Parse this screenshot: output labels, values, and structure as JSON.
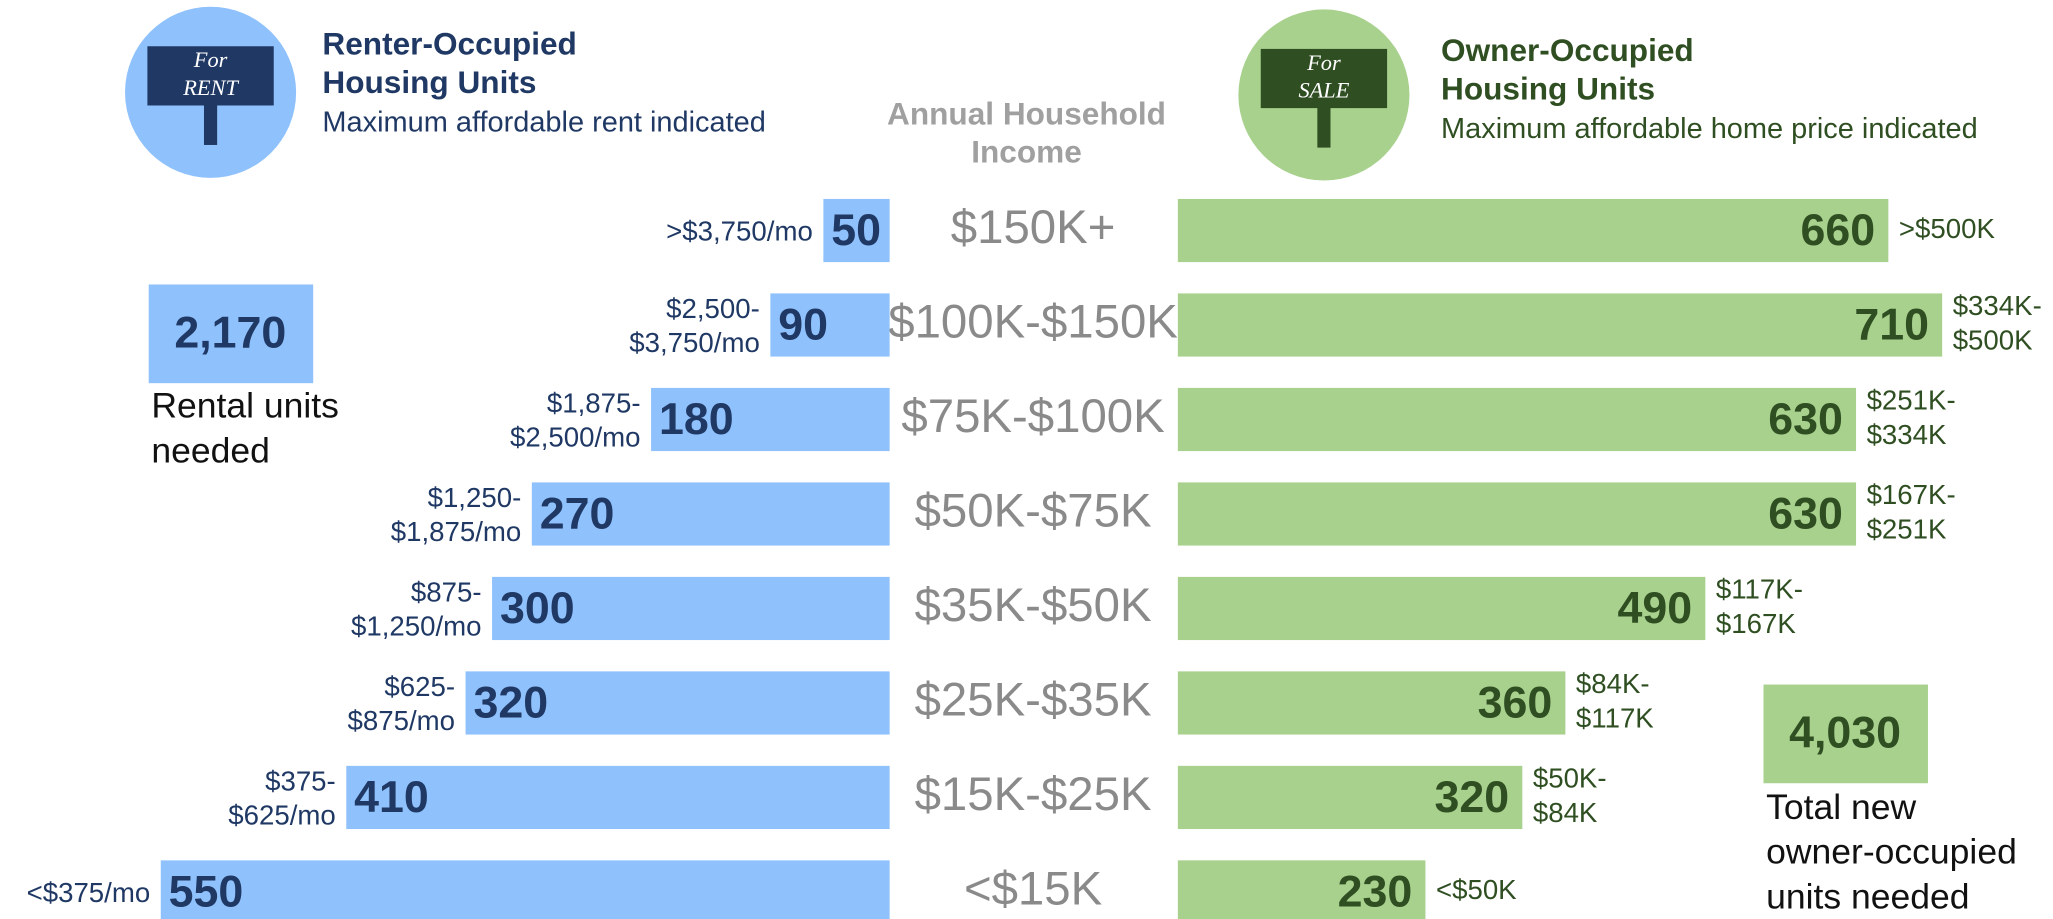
{
  "chart_data": {
    "type": "butterfly_bar",
    "center_header": [
      "Annual Household",
      "Income"
    ],
    "categories": [
      "$150K+",
      "$100K-$150K",
      "$75K-$100K",
      "$50K-$75K",
      "$35K-$50K",
      "$25K-$35K",
      "$15K-$25K",
      "<$15K"
    ],
    "renter": {
      "sign": [
        "For",
        "RENT"
      ],
      "title": [
        "Renter-Occupied",
        "Housing Units"
      ],
      "subtitle": "Maximum affordable rent indicated",
      "color": "#8fc1fc",
      "text_color": "#1f3864",
      "values": [
        50,
        90,
        180,
        270,
        300,
        320,
        410,
        550
      ],
      "range_labels": [
        [
          ">$3,750/mo"
        ],
        [
          "$2,500-",
          "$3,750/mo"
        ],
        [
          "$1,875-",
          "$2,500/mo"
        ],
        [
          "$1,250-",
          "$1,875/mo"
        ],
        [
          "$875-",
          "$1,250/mo"
        ],
        [
          "$625-",
          "$875/mo"
        ],
        [
          "$375-",
          "$625/mo"
        ],
        [
          "<$375/mo"
        ]
      ],
      "total": {
        "value": 2170,
        "label": "2,170"
      },
      "total_text": [
        "Rental units",
        "needed"
      ]
    },
    "owner": {
      "sign": [
        "For",
        "SALE"
      ],
      "title": [
        "Owner-Occupied",
        "Housing Units"
      ],
      "subtitle": "Maximum affordable home price indicated",
      "color": "#a9d18e",
      "text_color": "#2f4f22",
      "values": [
        660,
        710,
        630,
        630,
        490,
        360,
        320,
        230
      ],
      "range_labels": [
        [
          ">$500K"
        ],
        [
          "$334K-",
          "$500K"
        ],
        [
          "$251K-",
          "$334K"
        ],
        [
          "$167K-",
          "$251K"
        ],
        [
          "$117K-",
          "$167K"
        ],
        [
          "$84K-",
          "$117K"
        ],
        [
          "$50K-",
          "$84K"
        ],
        [
          "<$50K"
        ]
      ],
      "total": {
        "value": 4030,
        "label": "4,030"
      },
      "total_text": [
        "Total new",
        "owner-occupied",
        "units needed"
      ]
    }
  }
}
